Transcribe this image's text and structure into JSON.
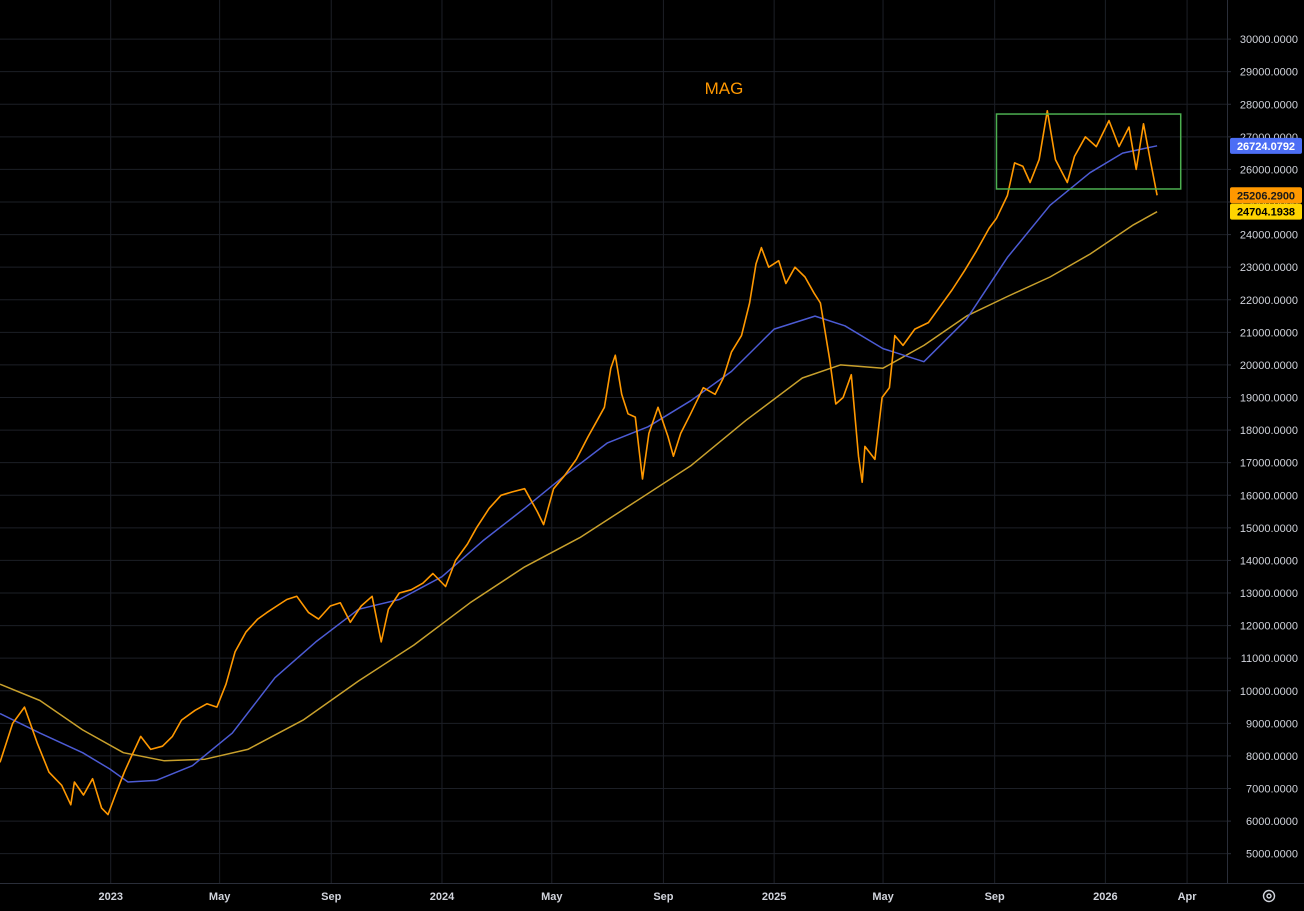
{
  "chart_data": {
    "type": "line",
    "title": "MAG",
    "x_range": [
      "2022-09-01",
      "2026-05-15"
    ],
    "ylim": [
      4100,
      31200
    ],
    "y_ticks": [
      5000,
      6000,
      7000,
      8000,
      9000,
      10000,
      11000,
      12000,
      13000,
      14000,
      15000,
      16000,
      17000,
      18000,
      19000,
      20000,
      21000,
      22000,
      23000,
      24000,
      25000,
      26000,
      27000,
      28000,
      29000,
      30000
    ],
    "y_tick_labels": [
      "5000.0000",
      "6000.0000",
      "7000.0000",
      "8000.0000",
      "9000.0000",
      "10000.0000",
      "11000.0000",
      "12000.0000",
      "13000.0000",
      "14000.0000",
      "15000.0000",
      "16000.0000",
      "17000.0000",
      "18000.0000",
      "19000.0000",
      "20000.0000",
      "21000.0000",
      "22000.0000",
      "23000.0000",
      "24000.0000",
      "25000.0000",
      "26000.0000",
      "27000.0000",
      "28000.0000",
      "29000.0000",
      "30000.0000"
    ],
    "x_ticks": [
      {
        "date": "2023-01-01",
        "label": "2023"
      },
      {
        "date": "2023-05-01",
        "label": "May"
      },
      {
        "date": "2023-09-01",
        "label": "Sep"
      },
      {
        "date": "2024-01-01",
        "label": "2024"
      },
      {
        "date": "2024-05-01",
        "label": "May"
      },
      {
        "date": "2024-09-01",
        "label": "Sep"
      },
      {
        "date": "2025-01-01",
        "label": "2025"
      },
      {
        "date": "2025-05-01",
        "label": "May"
      },
      {
        "date": "2025-09-01",
        "label": "Sep"
      },
      {
        "date": "2026-01-01",
        "label": "2026"
      },
      {
        "date": "2026-04-01",
        "label": "Apr"
      }
    ],
    "grid": true,
    "series": [
      {
        "role": "price",
        "color": "#ff9800",
        "points": [
          [
            "2022-09-01",
            7800
          ],
          [
            "2022-09-15",
            9000
          ],
          [
            "2022-09-28",
            9500
          ],
          [
            "2022-10-12",
            8400
          ],
          [
            "2022-10-25",
            7500
          ],
          [
            "2022-11-08",
            7100
          ],
          [
            "2022-11-18",
            6500
          ],
          [
            "2022-11-22",
            7200
          ],
          [
            "2022-12-02",
            6800
          ],
          [
            "2022-12-12",
            7300
          ],
          [
            "2022-12-22",
            6400
          ],
          [
            "2022-12-29",
            6200
          ],
          [
            "2023-01-06",
            6800
          ],
          [
            "2023-01-16",
            7500
          ],
          [
            "2023-01-24",
            8000
          ],
          [
            "2023-02-03",
            8600
          ],
          [
            "2023-02-14",
            8200
          ],
          [
            "2023-02-27",
            8300
          ],
          [
            "2023-03-10",
            8600
          ],
          [
            "2023-03-20",
            9100
          ],
          [
            "2023-04-04",
            9400
          ],
          [
            "2023-04-17",
            9600
          ],
          [
            "2023-04-28",
            9500
          ],
          [
            "2023-05-08",
            10200
          ],
          [
            "2023-05-18",
            11200
          ],
          [
            "2023-05-30",
            11800
          ],
          [
            "2023-06-12",
            12200
          ],
          [
            "2023-06-22",
            12400
          ],
          [
            "2023-07-03",
            12600
          ],
          [
            "2023-07-14",
            12800
          ],
          [
            "2023-07-25",
            12900
          ],
          [
            "2023-08-07",
            12400
          ],
          [
            "2023-08-18",
            12200
          ],
          [
            "2023-08-31",
            12600
          ],
          [
            "2023-09-11",
            12700
          ],
          [
            "2023-09-22",
            12100
          ],
          [
            "2023-10-04",
            12600
          ],
          [
            "2023-10-16",
            12900
          ],
          [
            "2023-10-26",
            11500
          ],
          [
            "2023-11-03",
            12500
          ],
          [
            "2023-11-15",
            13000
          ],
          [
            "2023-11-28",
            13100
          ],
          [
            "2023-12-11",
            13300
          ],
          [
            "2023-12-22",
            13600
          ],
          [
            "2024-01-05",
            13200
          ],
          [
            "2024-01-16",
            14000
          ],
          [
            "2024-01-29",
            14500
          ],
          [
            "2024-02-08",
            15000
          ],
          [
            "2024-02-22",
            15600
          ],
          [
            "2024-03-06",
            16000
          ],
          [
            "2024-03-18",
            16100
          ],
          [
            "2024-04-01",
            16200
          ],
          [
            "2024-04-15",
            15500
          ],
          [
            "2024-04-22",
            15100
          ],
          [
            "2024-05-03",
            16200
          ],
          [
            "2024-05-15",
            16600
          ],
          [
            "2024-05-28",
            17100
          ],
          [
            "2024-06-10",
            17800
          ],
          [
            "2024-06-20",
            18300
          ],
          [
            "2024-06-28",
            18700
          ],
          [
            "2024-07-05",
            19900
          ],
          [
            "2024-07-10",
            20300
          ],
          [
            "2024-07-17",
            19100
          ],
          [
            "2024-07-24",
            18500
          ],
          [
            "2024-08-01",
            18400
          ],
          [
            "2024-08-06",
            17200
          ],
          [
            "2024-08-09",
            16500
          ],
          [
            "2024-08-16",
            17900
          ],
          [
            "2024-08-26",
            18700
          ],
          [
            "2024-09-06",
            17800
          ],
          [
            "2024-09-12",
            17200
          ],
          [
            "2024-09-20",
            17900
          ],
          [
            "2024-10-01",
            18500
          ],
          [
            "2024-10-15",
            19300
          ],
          [
            "2024-10-28",
            19100
          ],
          [
            "2024-11-06",
            19600
          ],
          [
            "2024-11-15",
            20400
          ],
          [
            "2024-11-26",
            20900
          ],
          [
            "2024-12-05",
            21900
          ],
          [
            "2024-12-12",
            23100
          ],
          [
            "2024-12-18",
            23600
          ],
          [
            "2024-12-26",
            23000
          ],
          [
            "2025-01-06",
            23200
          ],
          [
            "2025-01-14",
            22500
          ],
          [
            "2025-01-24",
            23000
          ],
          [
            "2025-02-04",
            22700
          ],
          [
            "2025-02-14",
            22200
          ],
          [
            "2025-02-21",
            21900
          ],
          [
            "2025-03-03",
            20200
          ],
          [
            "2025-03-10",
            18800
          ],
          [
            "2025-03-18",
            19000
          ],
          [
            "2025-03-27",
            19700
          ],
          [
            "2025-04-04",
            17200
          ],
          [
            "2025-04-08",
            16400
          ],
          [
            "2025-04-11",
            17500
          ],
          [
            "2025-04-22",
            17100
          ],
          [
            "2025-04-30",
            19000
          ],
          [
            "2025-05-08",
            19300
          ],
          [
            "2025-05-14",
            20900
          ],
          [
            "2025-05-23",
            20600
          ],
          [
            "2025-06-05",
            21100
          ],
          [
            "2025-06-20",
            21300
          ],
          [
            "2025-07-03",
            21800
          ],
          [
            "2025-07-16",
            22300
          ],
          [
            "2025-07-30",
            22900
          ],
          [
            "2025-08-12",
            23500
          ],
          [
            "2025-08-26",
            24200
          ],
          [
            "2025-09-03",
            24500
          ],
          [
            "2025-09-15",
            25200
          ],
          [
            "2025-09-23",
            26200
          ],
          [
            "2025-10-02",
            26100
          ],
          [
            "2025-10-10",
            25600
          ],
          [
            "2025-10-20",
            26300
          ],
          [
            "2025-10-29",
            27800
          ],
          [
            "2025-11-07",
            26300
          ],
          [
            "2025-11-20",
            25600
          ],
          [
            "2025-11-28",
            26400
          ],
          [
            "2025-12-10",
            27000
          ],
          [
            "2025-12-22",
            26700
          ],
          [
            "2026-01-05",
            27500
          ],
          [
            "2026-01-16",
            26700
          ],
          [
            "2026-01-27",
            27300
          ],
          [
            "2026-02-04",
            26000
          ],
          [
            "2026-02-12",
            27400
          ],
          [
            "2026-02-20",
            26200
          ],
          [
            "2026-02-27",
            25206.29
          ]
        ]
      },
      {
        "role": "moving-average-fast",
        "color": "#4c5bd4",
        "points": [
          [
            "2022-09-01",
            9300
          ],
          [
            "2022-10-15",
            8700
          ],
          [
            "2022-12-01",
            8100
          ],
          [
            "2022-12-31",
            7600
          ],
          [
            "2023-01-20",
            7200
          ],
          [
            "2023-02-20",
            7250
          ],
          [
            "2023-04-01",
            7700
          ],
          [
            "2023-05-15",
            8700
          ],
          [
            "2023-07-01",
            10400
          ],
          [
            "2023-08-15",
            11500
          ],
          [
            "2023-10-01",
            12500
          ],
          [
            "2023-11-15",
            12800
          ],
          [
            "2024-01-01",
            13500
          ],
          [
            "2024-02-15",
            14600
          ],
          [
            "2024-04-01",
            15600
          ],
          [
            "2024-05-15",
            16600
          ],
          [
            "2024-07-01",
            17600
          ],
          [
            "2024-08-15",
            18100
          ],
          [
            "2024-10-01",
            18900
          ],
          [
            "2024-11-15",
            19800
          ],
          [
            "2025-01-01",
            21100
          ],
          [
            "2025-02-15",
            21500
          ],
          [
            "2025-03-20",
            21200
          ],
          [
            "2025-05-01",
            20500
          ],
          [
            "2025-06-15",
            20100
          ],
          [
            "2025-08-01",
            21400
          ],
          [
            "2025-09-15",
            23300
          ],
          [
            "2025-11-01",
            24900
          ],
          [
            "2025-12-15",
            25900
          ],
          [
            "2026-01-20",
            26500
          ],
          [
            "2026-02-27",
            26724.0792
          ]
        ]
      },
      {
        "role": "moving-average-slow",
        "color": "#c8a02c",
        "points": [
          [
            "2022-09-01",
            10200
          ],
          [
            "2022-10-15",
            9700
          ],
          [
            "2022-12-01",
            8800
          ],
          [
            "2023-01-15",
            8100
          ],
          [
            "2023-03-01",
            7850
          ],
          [
            "2023-04-15",
            7900
          ],
          [
            "2023-06-01",
            8200
          ],
          [
            "2023-08-01",
            9100
          ],
          [
            "2023-10-01",
            10300
          ],
          [
            "2023-12-01",
            11400
          ],
          [
            "2024-02-01",
            12700
          ],
          [
            "2024-04-01",
            13800
          ],
          [
            "2024-06-01",
            14700
          ],
          [
            "2024-08-01",
            15800
          ],
          [
            "2024-10-01",
            16900
          ],
          [
            "2024-12-01",
            18300
          ],
          [
            "2025-02-01",
            19600
          ],
          [
            "2025-03-15",
            20000
          ],
          [
            "2025-05-01",
            19900
          ],
          [
            "2025-06-15",
            20600
          ],
          [
            "2025-08-01",
            21500
          ],
          [
            "2025-09-15",
            22100
          ],
          [
            "2025-11-01",
            22700
          ],
          [
            "2025-12-15",
            23400
          ],
          [
            "2026-02-01",
            24300
          ],
          [
            "2026-02-27",
            24704.1938
          ]
        ]
      }
    ],
    "price_badges": [
      {
        "label": "26724.0792",
        "value": 26724.0792,
        "bg": "#4c6ef5",
        "fg": "#ffffff"
      },
      {
        "label": "25206.2900",
        "value": 25206.29,
        "bg": "#ff9800",
        "fg": "#1a1a1a"
      },
      {
        "label": "24704.1938",
        "value": 24704.1938,
        "bg": "#ffd400",
        "fg": "#000000"
      }
    ],
    "annotations": [
      {
        "type": "rectangle",
        "color": "#4caf50",
        "x0": "2025-09-03",
        "x1": "2026-03-25",
        "y0": 25400,
        "y1": 27700
      }
    ]
  },
  "ui": {
    "axis_settings_icon": "gear-icon"
  }
}
